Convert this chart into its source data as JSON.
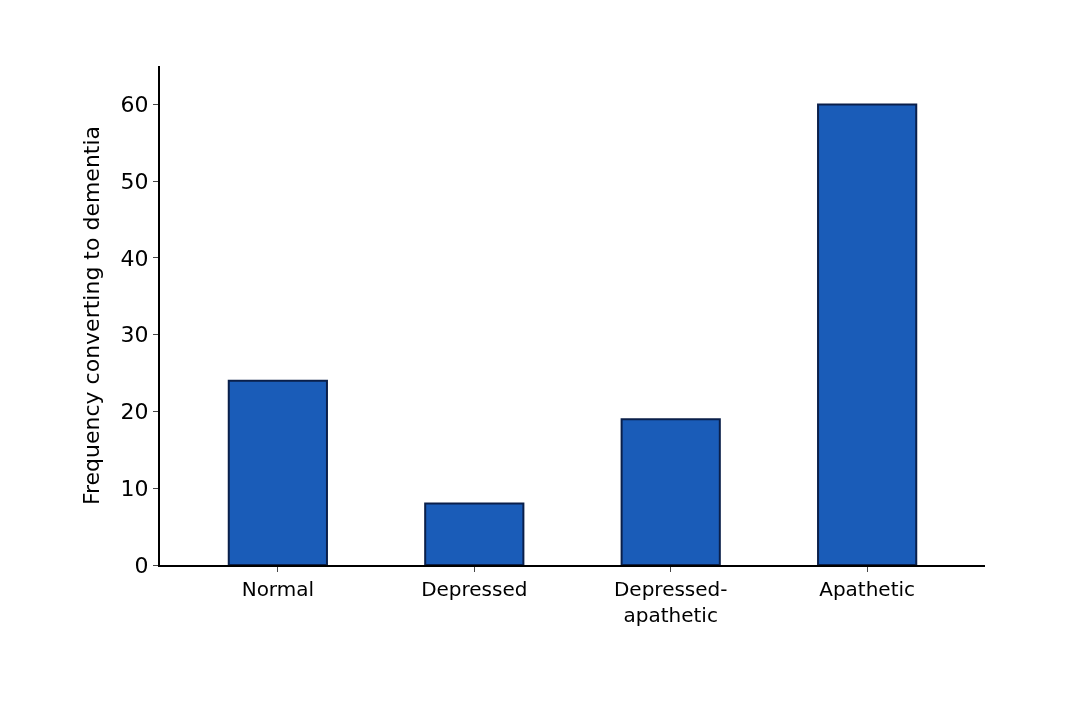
{
  "chart_data": {
    "type": "bar",
    "ylabel": "Frequency converting to dementia",
    "categories": [
      "Normal",
      "Depressed",
      "Depressed-\napathetic",
      "Apathetic"
    ],
    "values": [
      24,
      8,
      19,
      60
    ],
    "color": "#1a5cb8",
    "ylim": [
      0,
      65
    ],
    "yticks": [
      0,
      10,
      20,
      30,
      40,
      50,
      60
    ]
  }
}
